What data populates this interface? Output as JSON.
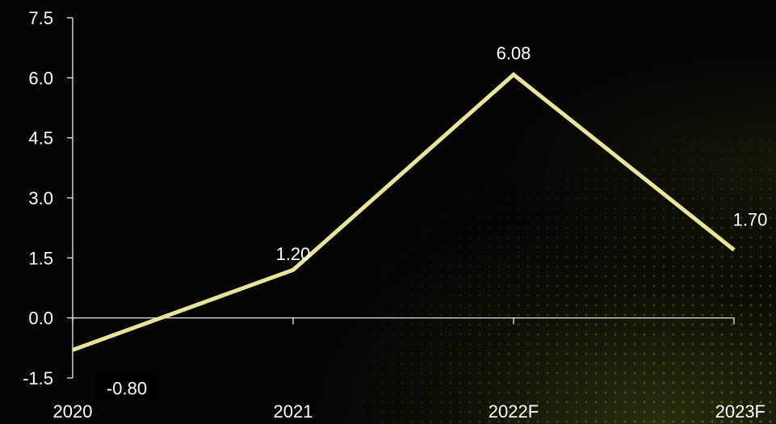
{
  "chart_data": {
    "type": "line",
    "title": "",
    "xlabel": "",
    "ylabel": "",
    "categories": [
      "2020",
      "2021",
      "2022F",
      "2023F"
    ],
    "series": [
      {
        "values": [
          -0.8,
          1.2,
          6.08,
          1.7
        ]
      }
    ],
    "data_labels": [
      "-0.80",
      "1.20",
      "6.08",
      "1.70"
    ],
    "y_ticks": [
      "7.5",
      "6.0",
      "4.5",
      "3.0",
      "1.5",
      "0.0",
      "-1.5"
    ],
    "y_tick_values": [
      7.5,
      6.0,
      4.5,
      3.0,
      1.5,
      0.0,
      -1.5
    ],
    "ylim": [
      -1.5,
      7.5
    ],
    "grid": false,
    "legend": "none"
  },
  "colors": {
    "line": "#e8e49a",
    "axis": "#ffffff",
    "text": "#ffffff",
    "background": "#000000"
  }
}
